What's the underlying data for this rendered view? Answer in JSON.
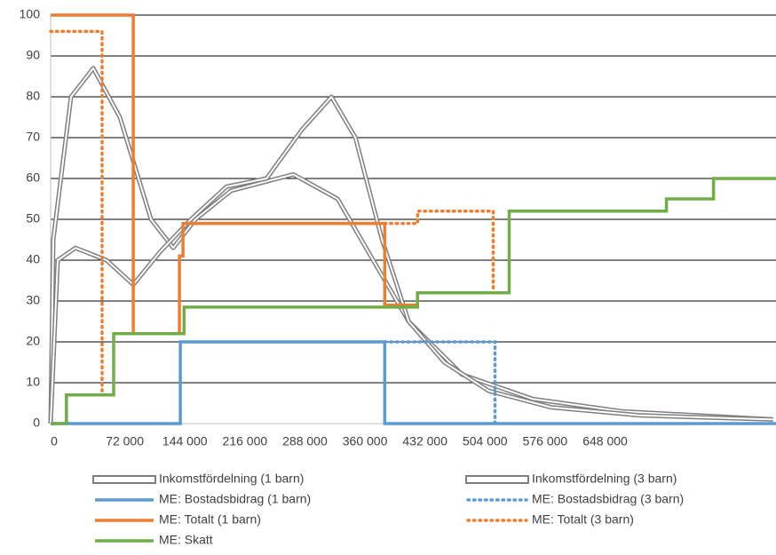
{
  "chart_data": {
    "type": "line",
    "xlim": [
      0,
      870000
    ],
    "ylim": [
      0,
      100
    ],
    "xticks": [
      0,
      {
        "value": 72000,
        "label": "72 000"
      },
      {
        "value": 144000,
        "label": "144 000"
      },
      {
        "value": 216000,
        "label": "216 000"
      },
      {
        "value": 288000,
        "label": "288 000"
      },
      {
        "value": 360000,
        "label": "360 000"
      },
      {
        "value": 432000,
        "label": "432 000"
      },
      {
        "value": 504000,
        "label": "504 000"
      },
      {
        "value": 576000,
        "label": "576 000"
      },
      {
        "value": 648000,
        "label": "648 000"
      }
    ],
    "yticks": [
      0,
      10,
      20,
      30,
      40,
      50,
      60,
      70,
      80,
      90,
      100
    ],
    "grid": true,
    "series": [
      {
        "name": "Inkomstfördelning (1 barn)",
        "color": "#7f7f7f",
        "style": "double",
        "x": [
          0,
          3200,
          24500,
          51200,
          83100,
          120400,
          147100,
          173700,
          216400,
          291000,
          344300,
          386900,
          429500,
          493500,
          578700,
          685300,
          866500
        ],
        "values": [
          0,
          45,
          80,
          87,
          75,
          50,
          43,
          50,
          57,
          61,
          55,
          40,
          25,
          12,
          6,
          3,
          1
        ]
      },
      {
        "name": "Inkomstfördelning (3 barn)",
        "color": "#7f7f7f",
        "style": "double",
        "x": [
          0,
          8500,
          29800,
          67100,
          99100,
          131100,
          168400,
          211000,
          259000,
          301600,
          336800,
          365600,
          397500,
          429500,
          472200,
          525400,
          600000,
          706600,
          866500
        ],
        "values": [
          0,
          40,
          43,
          40,
          34,
          42,
          50,
          58,
          60,
          72,
          80,
          70,
          45,
          25,
          15,
          8,
          4,
          2,
          1
        ]
      },
      {
        "name": "ME: Bostadsbidrag (1 barn)",
        "color": "#5b9bd5",
        "style": "solid",
        "x": [
          0,
          155600,
          155600,
          400700,
          400700,
          870000
        ],
        "values": [
          0,
          0,
          20,
          20,
          0,
          0
        ]
      },
      {
        "name": "ME: Bostadsbidrag (3 barn)",
        "color": "#5b9bd5",
        "style": "dotted",
        "x": [
          400700,
          533000,
          533000
        ],
        "values": [
          20,
          20,
          0
        ]
      },
      {
        "name": "ME: Totalt (1 barn)",
        "color": "#ed7d31",
        "style": "solid",
        "x": [
          0,
          99100,
          99100,
          154500,
          154500,
          158800,
          158800,
          400700,
          400700,
          440000
        ],
        "values": [
          100,
          100,
          22,
          22,
          41,
          41,
          49,
          49,
          29,
          29
        ]
      },
      {
        "name": "ME: Totalt (3 barn)",
        "color": "#ed7d31",
        "style": "dotted",
        "x": [
          0,
          61800,
          61800,
          400700,
          400700,
          440200,
          440200,
          530800,
          530800
        ],
        "values": [
          96,
          96,
          8,
          null,
          49,
          49,
          52,
          52,
          33
        ]
      },
      {
        "name": "ME: Skatt",
        "color": "#70ad47",
        "style": "solid",
        "x": [
          0,
          19000,
          19000,
          75600,
          75600,
          160000,
          160000,
          440000,
          440000,
          550000,
          550000,
          738600,
          738600,
          795000,
          795000,
          870000
        ],
        "values": [
          0,
          0,
          7,
          7,
          22,
          22,
          28.5,
          28.5,
          32,
          32,
          52,
          52,
          55,
          55,
          60,
          60
        ]
      }
    ]
  }
}
